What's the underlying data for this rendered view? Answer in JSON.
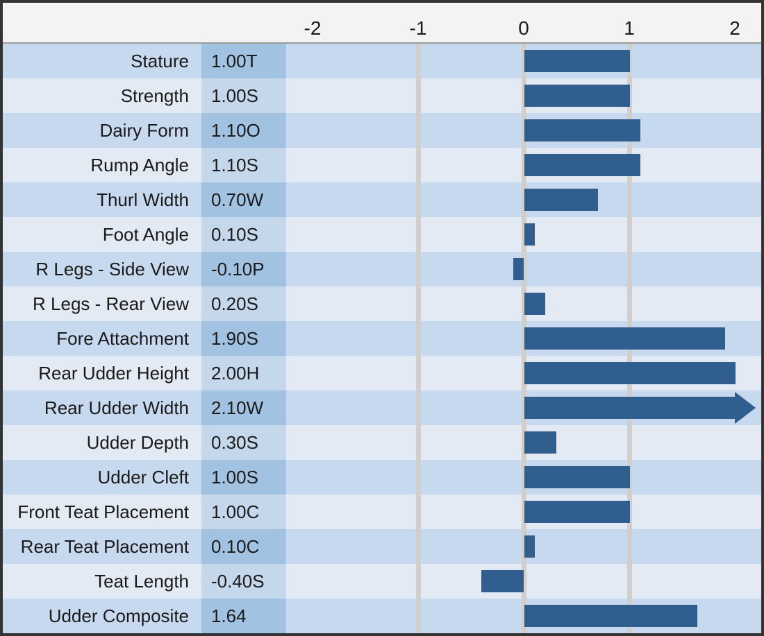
{
  "chart_data": {
    "type": "bar",
    "orientation": "horizontal",
    "title": "",
    "xlabel": "",
    "ylabel": "",
    "categories": [
      "Stature",
      "Strength",
      "Dairy Form",
      "Rump Angle",
      "Thurl Width",
      "Foot Angle",
      "R Legs - Side View",
      "R Legs - Rear View",
      "Fore Attachment",
      "Rear Udder Height",
      "Rear Udder Width",
      "Udder Depth",
      "Udder Cleft",
      "Front Teat Placement",
      "Rear Teat Placement",
      "Teat Length",
      "Udder Composite"
    ],
    "values": [
      1.0,
      1.0,
      1.1,
      1.1,
      0.7,
      0.1,
      -0.1,
      0.2,
      1.9,
      2.0,
      2.1,
      0.3,
      1.0,
      1.0,
      0.1,
      -0.4,
      1.64
    ],
    "value_labels": [
      "1.00T",
      "1.00S",
      "1.10O",
      "1.10S",
      "0.70W",
      "0.10S",
      "-0.10P",
      "0.20S",
      "1.90S",
      "2.00H",
      "2.10W",
      "0.30S",
      "1.00S",
      "1.00C",
      "0.10C",
      "-0.40S",
      "1.64"
    ],
    "overflow_right": [
      false,
      false,
      false,
      false,
      false,
      false,
      false,
      false,
      false,
      false,
      true,
      false,
      false,
      false,
      false,
      false,
      false
    ],
    "xticks": [
      -2,
      -1,
      0,
      1,
      2
    ],
    "xtick_labels": [
      "-2",
      "-1",
      "0",
      "1",
      "2"
    ],
    "xlim": [
      -2.25,
      2.3
    ],
    "gridlines_at": [
      -1,
      0,
      1
    ],
    "grid": "on",
    "legend": "none",
    "row_striping": "alternating dark/light blue"
  },
  "colors": {
    "bar": "#305E8E",
    "row_dark": "#C7D9EE",
    "row_light": "#E3EAF4",
    "value_cell_dark": "#A2C2E2",
    "value_cell_light": "#C5D7EB",
    "header_bg": "#F3F3F3",
    "gridline": "#D2CFCA",
    "border": "#333333",
    "text": "#1A1A1A"
  }
}
